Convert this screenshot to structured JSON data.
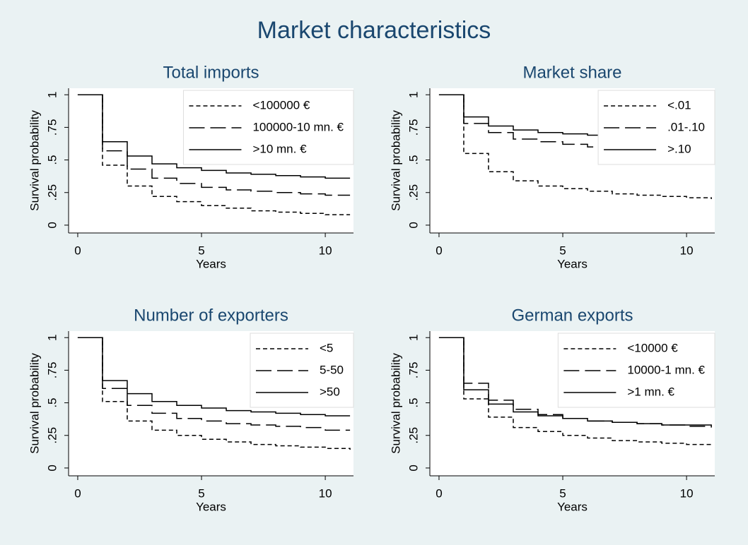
{
  "title": "Market characteristics",
  "chart_data": [
    {
      "type": "line",
      "step": true,
      "title": "Total imports",
      "xlabel": "Years",
      "ylabel": "Survival probability",
      "x": [
        0,
        1,
        2,
        3,
        4,
        5,
        6,
        7,
        8,
        9,
        10,
        11
      ],
      "series": [
        {
          "name": "<100000 €",
          "color": "#000000",
          "dash": "short",
          "values": [
            1,
            0.46,
            0.3,
            0.22,
            0.18,
            0.15,
            0.13,
            0.11,
            0.1,
            0.09,
            0.08,
            0.08
          ]
        },
        {
          "name": "100000-10 mn. €",
          "color": "#000000",
          "dash": "long",
          "values": [
            1,
            0.57,
            0.43,
            0.36,
            0.32,
            0.29,
            0.27,
            0.26,
            0.25,
            0.24,
            0.23,
            0.23
          ]
        },
        {
          "name": ">10 mn. €",
          "color": "#000000",
          "dash": "solid",
          "values": [
            1,
            0.64,
            0.53,
            0.47,
            0.44,
            0.42,
            0.4,
            0.39,
            0.38,
            0.37,
            0.36,
            0.36
          ]
        }
      ],
      "xlim": [
        -0.37,
        11.14
      ],
      "xticks": [
        0,
        5,
        10
      ],
      "ylim": [
        -0.06,
        1.05
      ],
      "yticks": [
        0,
        {
          "value": 0.25,
          "label": ".25"
        },
        {
          "value": 0.5,
          "label": ".5"
        },
        {
          "value": 0.75,
          "label": ".75"
        },
        1
      ],
      "grid": false,
      "legend": "top-right"
    },
    {
      "type": "line",
      "step": true,
      "title": "Market share",
      "xlabel": "Years",
      "ylabel": "Survival probability",
      "x": [
        0,
        1,
        2,
        3,
        4,
        5,
        6,
        7,
        8,
        9,
        10,
        11
      ],
      "series": [
        {
          "name": "<.01",
          "color": "#000000",
          "dash": "short",
          "values": [
            1,
            0.55,
            0.41,
            0.34,
            0.3,
            0.28,
            0.26,
            0.24,
            0.23,
            0.22,
            0.21,
            0.2
          ]
        },
        {
          "name": ".01-.10",
          "color": "#000000",
          "dash": "long",
          "values": [
            1,
            0.78,
            0.71,
            0.66,
            0.64,
            0.62,
            0.6,
            0.59,
            0.58,
            0.57,
            0.56,
            0.56
          ]
        },
        {
          "name": ">.10",
          "color": "#000000",
          "dash": "solid",
          "values": [
            1,
            0.83,
            0.76,
            0.73,
            0.71,
            0.7,
            0.69,
            0.68,
            0.67,
            0.66,
            0.66,
            0.66
          ]
        }
      ],
      "xlim": [
        -0.37,
        11.14
      ],
      "xticks": [
        0,
        5,
        10
      ],
      "ylim": [
        -0.06,
        1.05
      ],
      "yticks": [
        0,
        {
          "value": 0.25,
          "label": ".25"
        },
        {
          "value": 0.5,
          "label": ".5"
        },
        {
          "value": 0.75,
          "label": ".75"
        },
        1
      ],
      "grid": false,
      "legend": "top-right"
    },
    {
      "type": "line",
      "step": true,
      "title": "Number of exporters",
      "xlabel": "Years",
      "ylabel": "Survival probability",
      "x": [
        0,
        1,
        2,
        3,
        4,
        5,
        6,
        7,
        8,
        9,
        10,
        11
      ],
      "series": [
        {
          "name": "<5",
          "color": "#000000",
          "dash": "short",
          "values": [
            1,
            0.51,
            0.36,
            0.29,
            0.25,
            0.22,
            0.2,
            0.18,
            0.17,
            0.16,
            0.15,
            0.14
          ]
        },
        {
          "name": "5-50",
          "color": "#000000",
          "dash": "long",
          "values": [
            1,
            0.61,
            0.48,
            0.42,
            0.38,
            0.36,
            0.34,
            0.33,
            0.32,
            0.31,
            0.29,
            0.29
          ]
        },
        {
          "name": ">50",
          "color": "#000000",
          "dash": "solid",
          "values": [
            1,
            0.67,
            0.57,
            0.51,
            0.48,
            0.46,
            0.44,
            0.43,
            0.42,
            0.41,
            0.4,
            0.4
          ]
        }
      ],
      "xlim": [
        -0.37,
        11.14
      ],
      "xticks": [
        0,
        5,
        10
      ],
      "ylim": [
        -0.06,
        1.05
      ],
      "yticks": [
        0,
        {
          "value": 0.25,
          "label": ".25"
        },
        {
          "value": 0.5,
          "label": ".5"
        },
        {
          "value": 0.75,
          "label": ".75"
        },
        1
      ],
      "grid": false,
      "legend": "top-right"
    },
    {
      "type": "line",
      "step": true,
      "title": "German exports",
      "xlabel": "Years",
      "ylabel": "Survival probability",
      "x": [
        0,
        1,
        2,
        3,
        4,
        5,
        6,
        7,
        8,
        9,
        10,
        11
      ],
      "series": [
        {
          "name": "<10000 €",
          "color": "#000000",
          "dash": "short",
          "values": [
            1,
            0.53,
            0.39,
            0.31,
            0.28,
            0.25,
            0.23,
            0.21,
            0.2,
            0.19,
            0.18,
            0.17
          ]
        },
        {
          "name": "10000-1 mn. €",
          "color": "#000000",
          "dash": "long",
          "values": [
            1,
            0.65,
            0.52,
            0.45,
            0.41,
            0.38,
            0.36,
            0.35,
            0.34,
            0.33,
            0.32,
            0.31
          ]
        },
        {
          "name": ">1 mn. €",
          "color": "#000000",
          "dash": "solid",
          "values": [
            1,
            0.6,
            0.49,
            0.43,
            0.4,
            0.38,
            0.36,
            0.35,
            0.34,
            0.33,
            0.33,
            0.32
          ]
        }
      ],
      "xlim": [
        -0.37,
        11.14
      ],
      "xticks": [
        0,
        5,
        10
      ],
      "ylim": [
        -0.06,
        1.05
      ],
      "yticks": [
        0,
        {
          "value": 0.25,
          "label": ".25"
        },
        {
          "value": 0.5,
          "label": ".5"
        },
        {
          "value": 0.75,
          "label": ".75"
        },
        1
      ],
      "grid": false,
      "legend": "top-right"
    }
  ]
}
